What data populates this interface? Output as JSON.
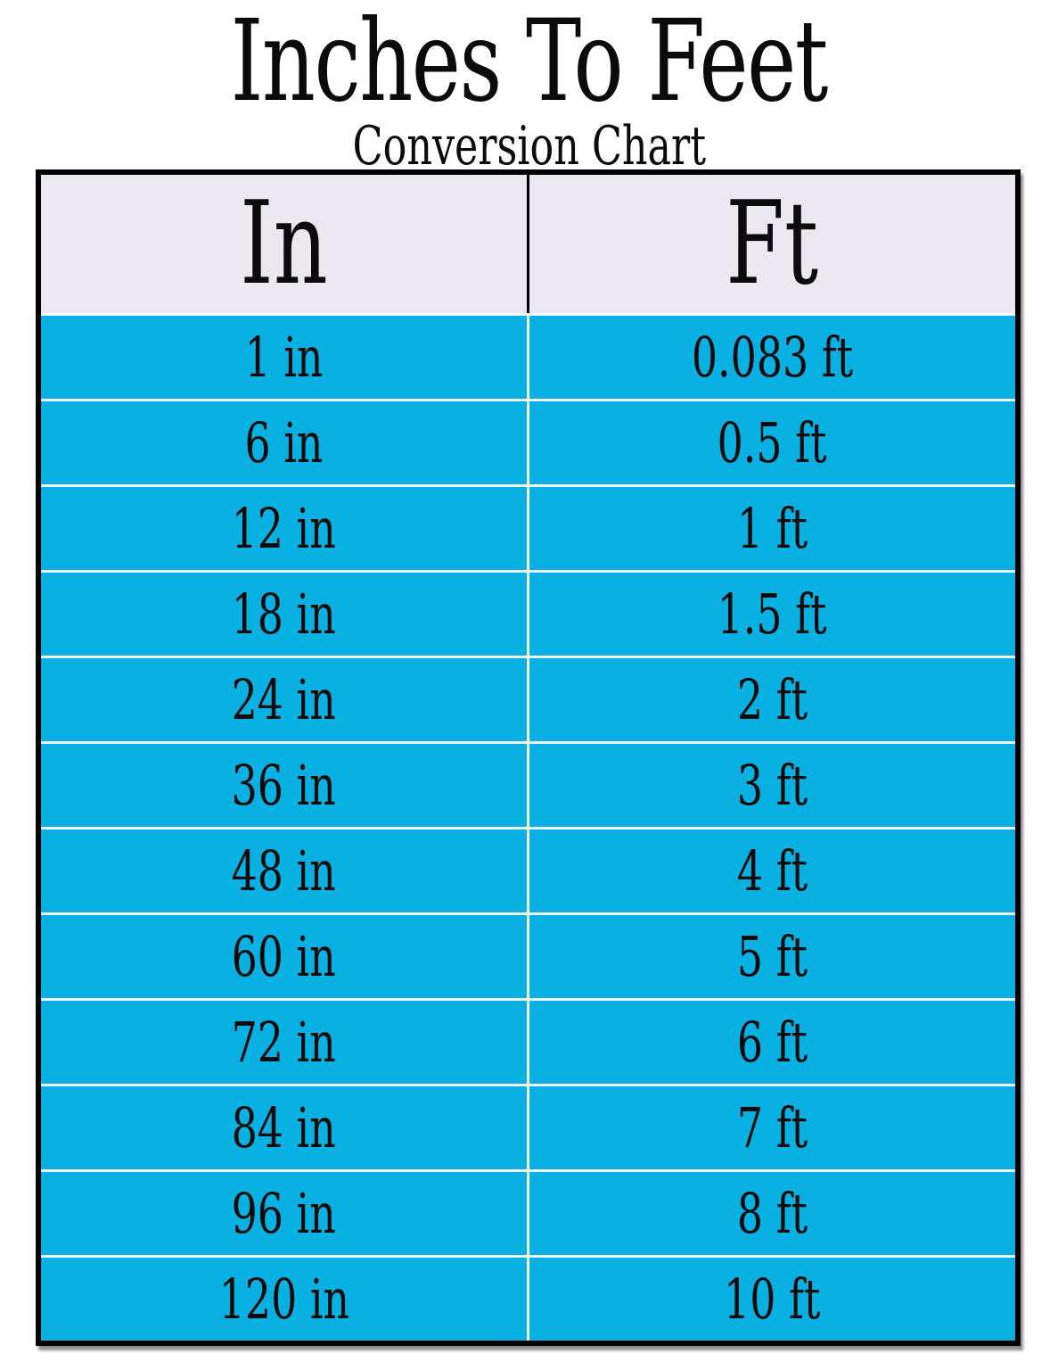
{
  "page": {
    "title": "Inches To Feet",
    "subtitle": "Conversion Chart"
  },
  "chart_data": {
    "type": "table",
    "title": "Inches To Feet Conversion Chart",
    "columns": [
      "In",
      "Ft"
    ],
    "rows": [
      [
        "1 in",
        "0.083 ft"
      ],
      [
        "6 in",
        "0.5 ft"
      ],
      [
        "12 in",
        "1 ft"
      ],
      [
        "18 in",
        "1.5 ft"
      ],
      [
        "24 in",
        "2 ft"
      ],
      [
        "36 in",
        "3 ft"
      ],
      [
        "48 in",
        "4 ft"
      ],
      [
        "60 in",
        "5 ft"
      ],
      [
        "72 in",
        "6 ft"
      ],
      [
        "84 in",
        "7 ft"
      ],
      [
        "96 in",
        "8 ft"
      ],
      [
        "120 in",
        "10 ft"
      ]
    ],
    "inches_values": [
      1,
      6,
      12,
      18,
      24,
      36,
      48,
      60,
      72,
      84,
      96,
      120
    ],
    "feet_values": [
      0.083,
      0.5,
      1,
      1.5,
      2,
      3,
      4,
      5,
      6,
      7,
      8,
      10
    ]
  },
  "colors": {
    "row_bg": "#09b1e2",
    "header_bg": "#ece8f0",
    "divider": "#f2f7f9",
    "border": "#000000",
    "text": "#0b0b0b"
  }
}
